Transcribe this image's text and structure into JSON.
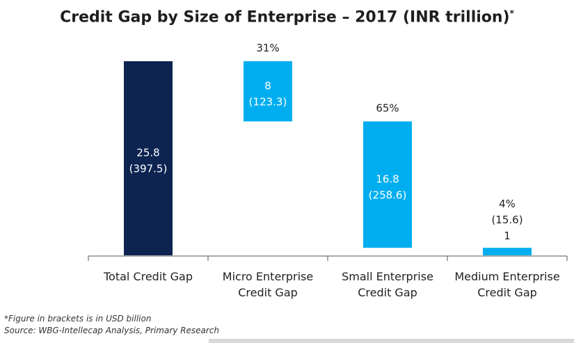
{
  "chart_data": {
    "type": "bar",
    "subtype": "waterfall",
    "title": "Credit Gap by Size of Enterprise – 2017 (INR trillion)",
    "title_marker": "*",
    "categories": [
      "Total Credit Gap",
      "Micro Enterprise Credit Gap",
      "Small Enterprise Credit Gap",
      "Medium Enterprise Credit Gap"
    ],
    "category_lines": [
      [
        "Total Credit Gap"
      ],
      [
        "Micro Enterprise",
        "Credit Gap"
      ],
      [
        "Small Enterprise",
        "Credit Gap"
      ],
      [
        "Medium Enterprise",
        "Credit Gap"
      ]
    ],
    "values": [
      25.8,
      8,
      16.8,
      1
    ],
    "usd_values": [
      397.5,
      123.3,
      258.6,
      15.6
    ],
    "value_labels": [
      "25.8",
      "8",
      "16.8",
      "1"
    ],
    "usd_labels": [
      "(397.5)",
      "(123.3)",
      "(258.6)",
      "(15.6)"
    ],
    "percent_labels": [
      "",
      "31%",
      "65%",
      "4%"
    ],
    "ylim": [
      0,
      25.8
    ],
    "colors": [
      "#0d2451",
      "#00aeef",
      "#00aeef",
      "#00aeef"
    ],
    "grid": false
  },
  "footnotes": [
    "*Figure in brackets is in USD billion",
    "Source: WBG-Intellecap Analysis, Primary Research"
  ]
}
